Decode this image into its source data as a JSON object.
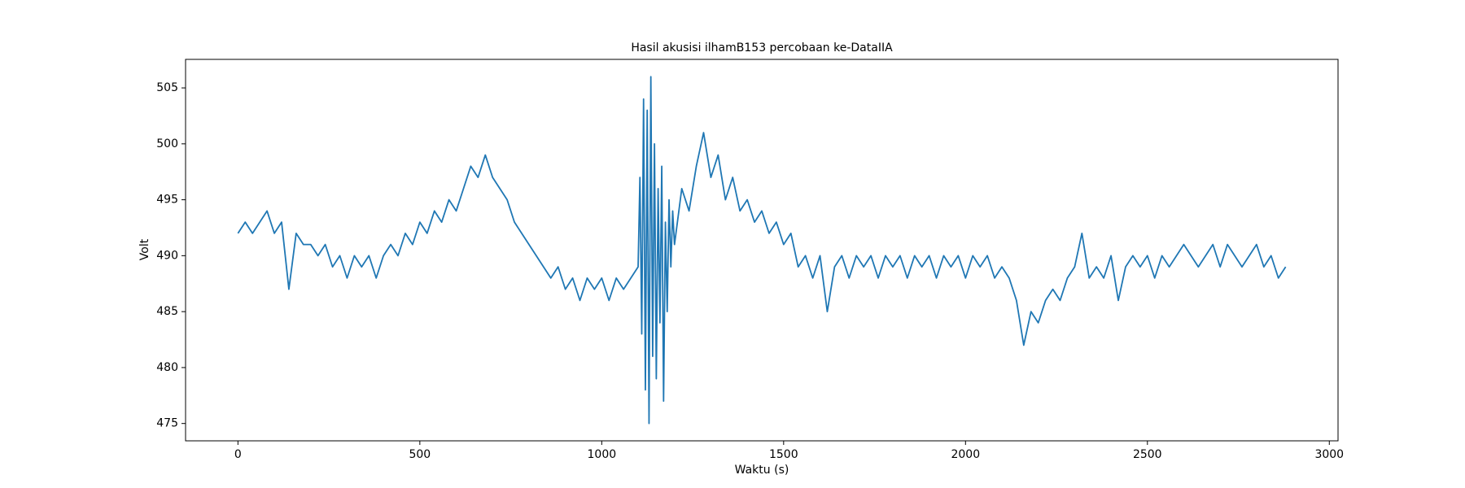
{
  "chart_data": {
    "type": "line",
    "title": "Hasil akusisi ilhamB153 percobaan ke-DataIIA",
    "xlabel": "Waktu (s)",
    "ylabel": "Volt",
    "x": [
      0,
      20,
      40,
      60,
      80,
      100,
      120,
      140,
      160,
      180,
      200,
      220,
      240,
      260,
      280,
      300,
      320,
      340,
      360,
      380,
      400,
      420,
      440,
      460,
      480,
      500,
      520,
      540,
      560,
      580,
      600,
      620,
      640,
      660,
      680,
      700,
      720,
      740,
      760,
      780,
      800,
      820,
      840,
      860,
      880,
      900,
      920,
      940,
      960,
      980,
      1000,
      1020,
      1040,
      1060,
      1080,
      1100,
      1105,
      1110,
      1115,
      1120,
      1125,
      1130,
      1135,
      1140,
      1145,
      1150,
      1155,
      1160,
      1165,
      1170,
      1175,
      1180,
      1185,
      1190,
      1195,
      1200,
      1220,
      1240,
      1260,
      1280,
      1300,
      1320,
      1340,
      1360,
      1380,
      1400,
      1420,
      1440,
      1460,
      1480,
      1500,
      1520,
      1540,
      1560,
      1580,
      1600,
      1620,
      1640,
      1660,
      1680,
      1700,
      1720,
      1740,
      1760,
      1780,
      1800,
      1820,
      1840,
      1860,
      1880,
      1900,
      1920,
      1940,
      1960,
      1980,
      2000,
      2020,
      2040,
      2060,
      2080,
      2100,
      2120,
      2140,
      2160,
      2180,
      2200,
      2220,
      2240,
      2260,
      2280,
      2300,
      2320,
      2340,
      2360,
      2380,
      2400,
      2420,
      2440,
      2460,
      2480,
      2500,
      2520,
      2540,
      2560,
      2580,
      2600,
      2620,
      2640,
      2660,
      2680,
      2700,
      2720,
      2740,
      2760,
      2780,
      2800,
      2820,
      2840,
      2860,
      2880
    ],
    "series": [
      {
        "color": "#1f77b4",
        "values": [
          492,
          493,
          492,
          493,
          494,
          492,
          493,
          487,
          492,
          491,
          491,
          490,
          491,
          489,
          490,
          488,
          490,
          489,
          490,
          488,
          490,
          491,
          490,
          492,
          491,
          493,
          492,
          494,
          493,
          495,
          494,
          496,
          498,
          497,
          499,
          497,
          496,
          495,
          493,
          492,
          491,
          490,
          489,
          488,
          489,
          487,
          488,
          486,
          488,
          487,
          488,
          486,
          488,
          487,
          488,
          489,
          497,
          483,
          504,
          478,
          503,
          475,
          506,
          481,
          500,
          479,
          496,
          484,
          498,
          477,
          493,
          485,
          495,
          489,
          494,
          491,
          496,
          494,
          498,
          501,
          497,
          499,
          495,
          497,
          494,
          495,
          493,
          494,
          492,
          493,
          491,
          492,
          489,
          490,
          488,
          490,
          485,
          489,
          490,
          488,
          490,
          489,
          490,
          488,
          490,
          489,
          490,
          488,
          490,
          489,
          490,
          488,
          490,
          489,
          490,
          488,
          490,
          489,
          490,
          488,
          489,
          488,
          486,
          482,
          485,
          484,
          486,
          487,
          486,
          488,
          489,
          492,
          488,
          489,
          488,
          490,
          486,
          489,
          490,
          489,
          490,
          488,
          490,
          489,
          490,
          491,
          490,
          489,
          490,
          491,
          489,
          491,
          490,
          489,
          490,
          491,
          489,
          490,
          488,
          489
        ]
      }
    ],
    "xlim": [
      -144,
      3024
    ],
    "xticks": [
      0,
      500,
      1000,
      1500,
      2000,
      2500,
      3000
    ],
    "ylim": [
      473.45,
      507.55
    ],
    "yticks": [
      475,
      480,
      485,
      490,
      495,
      500,
      505
    ]
  }
}
